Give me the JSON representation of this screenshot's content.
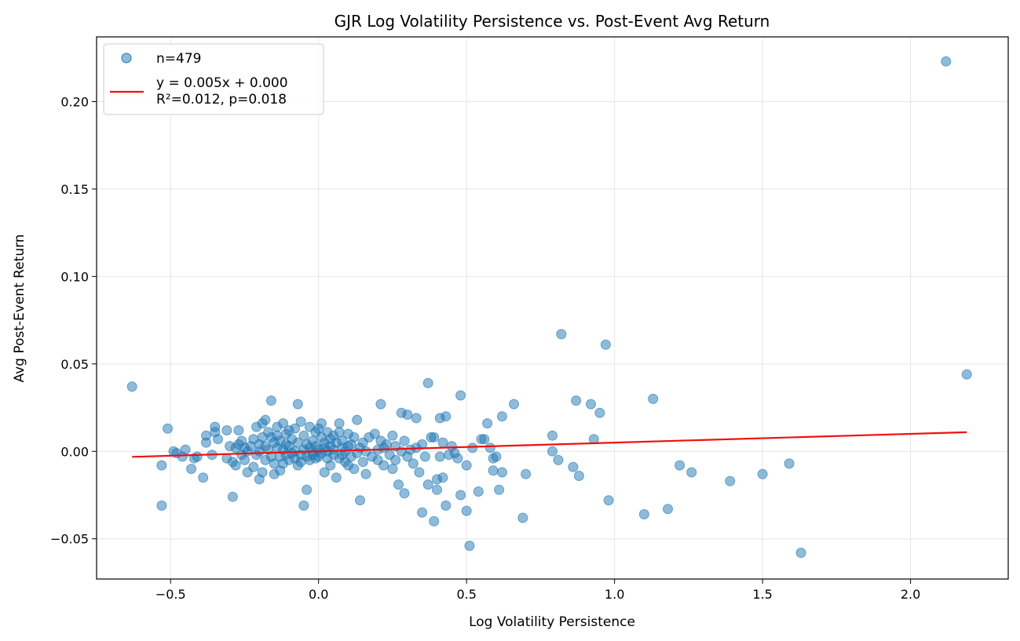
{
  "chart_data": {
    "type": "scatter",
    "title": "GJR Log Volatility Persistence vs. Post-Event Avg Return",
    "xlabel": "Log Volatility Persistence",
    "ylabel": "Avg Post-Event Return",
    "xlim": [
      -0.75,
      2.33
    ],
    "ylim": [
      -0.073,
      0.237
    ],
    "xticks": [
      -0.5,
      0.0,
      0.5,
      1.0,
      1.5,
      2.0
    ],
    "xtick_labels": [
      "−0.5",
      "0.0",
      "0.5",
      "1.0",
      "1.5",
      "2.0"
    ],
    "yticks": [
      -0.05,
      0.0,
      0.05,
      0.1,
      0.15,
      0.2
    ],
    "ytick_labels": [
      "−0.05",
      "0.00",
      "0.05",
      "0.10",
      "0.15",
      "0.20"
    ],
    "grid": true,
    "legend_position": "top-left",
    "colors": {
      "points": "#1f77b4",
      "fit_line": "#ee1111"
    },
    "series": [
      {
        "name": "n=479",
        "kind": "scatter",
        "points": [
          [
            -0.63,
            0.037
          ],
          [
            -0.53,
            -0.031
          ],
          [
            -0.53,
            -0.008
          ],
          [
            -0.51,
            0.013
          ],
          [
            -0.49,
            0.0
          ],
          [
            -0.48,
            -0.001
          ],
          [
            -0.46,
            -0.003
          ],
          [
            -0.45,
            0.001
          ],
          [
            -0.43,
            -0.01
          ],
          [
            -0.42,
            -0.004
          ],
          [
            -0.41,
            -0.003
          ],
          [
            -0.39,
            -0.015
          ],
          [
            -0.38,
            0.009
          ],
          [
            -0.38,
            0.005
          ],
          [
            -0.36,
            -0.002
          ],
          [
            -0.35,
            0.014
          ],
          [
            -0.35,
            0.011
          ],
          [
            -0.34,
            0.007
          ],
          [
            -0.31,
            0.012
          ],
          [
            -0.31,
            -0.004
          ],
          [
            -0.3,
            0.003
          ],
          [
            -0.29,
            -0.006
          ],
          [
            -0.29,
            -0.026
          ],
          [
            -0.28,
            0.002
          ],
          [
            -0.28,
            -0.008
          ],
          [
            -0.27,
            0.004
          ],
          [
            -0.27,
            0.012
          ],
          [
            -0.26,
            0.006
          ],
          [
            -0.26,
            -0.002
          ],
          [
            -0.25,
            0.002
          ],
          [
            -0.25,
            -0.005
          ],
          [
            -0.24,
            -0.012
          ],
          [
            -0.24,
            0.0
          ],
          [
            -0.23,
            0.003
          ],
          [
            -0.22,
            -0.009
          ],
          [
            -0.22,
            0.007
          ],
          [
            -0.21,
            0.014
          ],
          [
            -0.21,
            -0.002
          ],
          [
            -0.2,
            0.0
          ],
          [
            -0.2,
            0.004
          ],
          [
            -0.2,
            -0.016
          ],
          [
            -0.19,
            0.016
          ],
          [
            -0.19,
            -0.012
          ],
          [
            -0.19,
            0.008
          ],
          [
            -0.18,
            0.018
          ],
          [
            -0.18,
            -0.005
          ],
          [
            -0.18,
            0.003
          ],
          [
            -0.17,
            0.001
          ],
          [
            -0.17,
            0.011
          ],
          [
            -0.16,
            0.029
          ],
          [
            -0.16,
            -0.003
          ],
          [
            -0.16,
            0.008
          ],
          [
            -0.15,
            -0.007
          ],
          [
            -0.15,
            0.005
          ],
          [
            -0.15,
            -0.013
          ],
          [
            -0.14,
            0.002
          ],
          [
            -0.14,
            0.014
          ],
          [
            -0.14,
            0.009
          ],
          [
            -0.13,
            -0.003
          ],
          [
            -0.13,
            0.006
          ],
          [
            -0.13,
            -0.011
          ],
          [
            -0.12,
            0.001
          ],
          [
            -0.12,
            0.016
          ],
          [
            -0.12,
            -0.007
          ],
          [
            -0.11,
            0.004
          ],
          [
            -0.11,
            -0.002
          ],
          [
            -0.11,
            0.01
          ],
          [
            -0.1,
            -0.005
          ],
          [
            -0.1,
            0.003
          ],
          [
            -0.1,
            0.012
          ],
          [
            -0.09,
            -0.001
          ],
          [
            -0.09,
            0.007
          ],
          [
            -0.08,
            0.0
          ],
          [
            -0.08,
            -0.004
          ],
          [
            -0.08,
            0.013
          ],
          [
            -0.07,
            0.027
          ],
          [
            -0.07,
            -0.008
          ],
          [
            -0.07,
            0.005
          ],
          [
            -0.06,
            0.017
          ],
          [
            -0.06,
            -0.002
          ],
          [
            -0.06,
            -0.006
          ],
          [
            -0.05,
            0.001
          ],
          [
            -0.05,
            -0.031
          ],
          [
            -0.05,
            0.009
          ],
          [
            -0.04,
            -0.003
          ],
          [
            -0.04,
            0.004
          ],
          [
            -0.04,
            -0.022
          ],
          [
            -0.03,
            0.002
          ],
          [
            -0.03,
            0.014
          ],
          [
            -0.03,
            -0.005
          ],
          [
            -0.02,
            0.0
          ],
          [
            -0.02,
            0.006
          ],
          [
            -0.02,
            -0.002
          ],
          [
            -0.01,
            0.011
          ],
          [
            -0.01,
            0.003
          ],
          [
            -0.01,
            -0.004
          ],
          [
            0.0,
            0.013
          ],
          [
            0.0,
            0.001
          ],
          [
            0.0,
            -0.003
          ],
          [
            0.01,
            0.008
          ],
          [
            0.01,
            0.016
          ],
          [
            0.01,
            -0.001
          ],
          [
            0.02,
            0.005
          ],
          [
            0.02,
            -0.012
          ],
          [
            0.02,
            0.002
          ],
          [
            0.03,
            0.011
          ],
          [
            0.03,
            -0.004
          ],
          [
            0.03,
            0.0
          ],
          [
            0.04,
            0.007
          ],
          [
            0.04,
            -0.008
          ],
          [
            0.04,
            0.003
          ],
          [
            0.05,
            0.009
          ],
          [
            0.05,
            -0.002
          ],
          [
            0.05,
            0.001
          ],
          [
            0.06,
            -0.015
          ],
          [
            0.06,
            0.005
          ],
          [
            0.07,
            0.016
          ],
          [
            0.07,
            -0.004
          ],
          [
            0.07,
            0.011
          ],
          [
            0.08,
            0.002
          ],
          [
            0.08,
            -0.002
          ],
          [
            0.08,
            0.006
          ],
          [
            0.09,
            0.0
          ],
          [
            0.09,
            -0.006
          ],
          [
            0.1,
            0.01
          ],
          [
            0.1,
            0.003
          ],
          [
            0.1,
            -0.008
          ],
          [
            0.11,
            0.004
          ],
          [
            0.11,
            -0.003
          ],
          [
            0.12,
            0.008
          ],
          [
            0.12,
            -0.01
          ],
          [
            0.13,
            0.018
          ],
          [
            0.13,
            -0.001
          ],
          [
            0.14,
            -0.028
          ],
          [
            0.14,
            0.002
          ],
          [
            0.15,
            -0.006
          ],
          [
            0.15,
            0.005
          ],
          [
            0.16,
            -0.013
          ],
          [
            0.16,
            0.0
          ],
          [
            0.17,
            0.008
          ],
          [
            0.18,
            -0.003
          ],
          [
            0.19,
            0.01
          ],
          [
            0.2,
            0.001
          ],
          [
            0.2,
            -0.005
          ],
          [
            0.21,
            0.027
          ],
          [
            0.21,
            0.006
          ],
          [
            0.22,
            -0.008
          ],
          [
            0.22,
            0.002
          ],
          [
            0.23,
            0.004
          ],
          [
            0.24,
            -0.002
          ],
          [
            0.25,
            0.009
          ],
          [
            0.25,
            -0.01
          ],
          [
            0.26,
            0.003
          ],
          [
            0.26,
            -0.005
          ],
          [
            0.27,
            -0.019
          ],
          [
            0.28,
            0.022
          ],
          [
            0.28,
            0.0
          ],
          [
            0.29,
            -0.024
          ],
          [
            0.29,
            0.006
          ],
          [
            0.3,
            0.021
          ],
          [
            0.3,
            -0.003
          ],
          [
            0.31,
            0.001
          ],
          [
            0.32,
            -0.007
          ],
          [
            0.33,
            0.019
          ],
          [
            0.33,
            0.002
          ],
          [
            0.34,
            -0.012
          ],
          [
            0.35,
            0.004
          ],
          [
            0.35,
            -0.035
          ],
          [
            0.36,
            -0.003
          ],
          [
            0.37,
            0.039
          ],
          [
            0.37,
            -0.019
          ],
          [
            0.38,
            0.008
          ],
          [
            0.39,
            0.008
          ],
          [
            0.39,
            -0.04
          ],
          [
            0.4,
            -0.016
          ],
          [
            0.4,
            -0.022
          ],
          [
            0.41,
            0.019
          ],
          [
            0.41,
            -0.003
          ],
          [
            0.42,
            -0.015
          ],
          [
            0.42,
            0.005
          ],
          [
            0.43,
            0.02
          ],
          [
            0.43,
            -0.031
          ],
          [
            0.44,
            -0.002
          ],
          [
            0.45,
            0.003
          ],
          [
            0.46,
            -0.001
          ],
          [
            0.47,
            -0.004
          ],
          [
            0.48,
            0.032
          ],
          [
            0.48,
            -0.025
          ],
          [
            0.5,
            -0.008
          ],
          [
            0.5,
            -0.034
          ],
          [
            0.51,
            -0.054
          ],
          [
            0.52,
            0.002
          ],
          [
            0.54,
            -0.023
          ],
          [
            0.55,
            0.007
          ],
          [
            0.56,
            0.007
          ],
          [
            0.57,
            0.016
          ],
          [
            0.58,
            0.002
          ],
          [
            0.59,
            -0.011
          ],
          [
            0.59,
            -0.004
          ],
          [
            0.6,
            -0.003
          ],
          [
            0.61,
            -0.022
          ],
          [
            0.62,
            -0.012
          ],
          [
            0.62,
            0.02
          ],
          [
            0.66,
            0.027
          ],
          [
            0.69,
            -0.038
          ],
          [
            0.7,
            -0.013
          ],
          [
            0.79,
            0.009
          ],
          [
            0.79,
            0.0
          ],
          [
            0.81,
            -0.005
          ],
          [
            0.82,
            0.067
          ],
          [
            0.86,
            -0.009
          ],
          [
            0.87,
            0.029
          ],
          [
            0.88,
            -0.014
          ],
          [
            0.92,
            0.027
          ],
          [
            0.93,
            0.007
          ],
          [
            0.95,
            0.022
          ],
          [
            0.97,
            0.061
          ],
          [
            0.98,
            -0.028
          ],
          [
            1.1,
            -0.036
          ],
          [
            1.13,
            0.03
          ],
          [
            1.18,
            -0.033
          ],
          [
            1.22,
            -0.008
          ],
          [
            1.26,
            -0.012
          ],
          [
            1.39,
            -0.017
          ],
          [
            1.5,
            -0.013
          ],
          [
            1.59,
            -0.007
          ],
          [
            1.63,
            -0.058
          ],
          [
            2.12,
            0.223
          ],
          [
            2.19,
            0.044
          ]
        ]
      },
      {
        "name": "y = 0.005x + 0.000\nR²=0.012, p=0.018",
        "kind": "line",
        "slope": 0.005,
        "intercept": 0.0,
        "x_range": [
          -0.63,
          2.19
        ]
      }
    ]
  }
}
